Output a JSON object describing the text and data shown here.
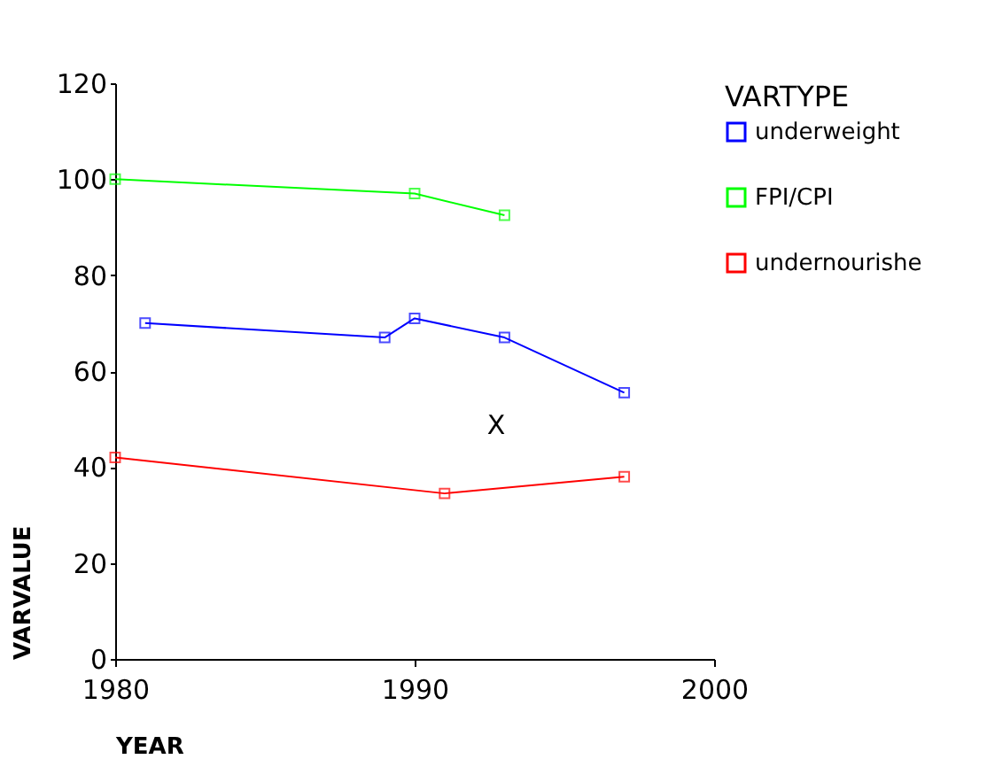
{
  "chart_data": {
    "type": "line",
    "xlabel": "YEAR",
    "ylabel": "VARVALUE",
    "legend_title": "VARTYPE",
    "xlim": [
      1980,
      2000
    ],
    "xticks": [
      1980,
      1990,
      2000
    ],
    "ylim": [
      0,
      120
    ],
    "yticks": [
      0,
      20,
      40,
      60,
      80,
      100,
      120
    ],
    "grid": false,
    "legend": "right",
    "marker": "square",
    "line_style": "solid",
    "annotations": [
      "X"
    ],
    "series": [
      {
        "name": "underweight",
        "color": "#0000ff",
        "x": [
          1981,
          1989,
          1990,
          1993,
          1997
        ],
        "values": [
          70,
          67,
          71,
          67,
          55.5
        ]
      },
      {
        "name": "FPI/CPI",
        "color": "#00ff00",
        "x": [
          1980,
          1990,
          1993
        ],
        "values": [
          100,
          97,
          92.5
        ]
      },
      {
        "name": "undernourishe",
        "color": "#ff0000",
        "x": [
          1980,
          1991,
          1997
        ],
        "values": [
          42,
          34.5,
          38
        ]
      }
    ]
  }
}
